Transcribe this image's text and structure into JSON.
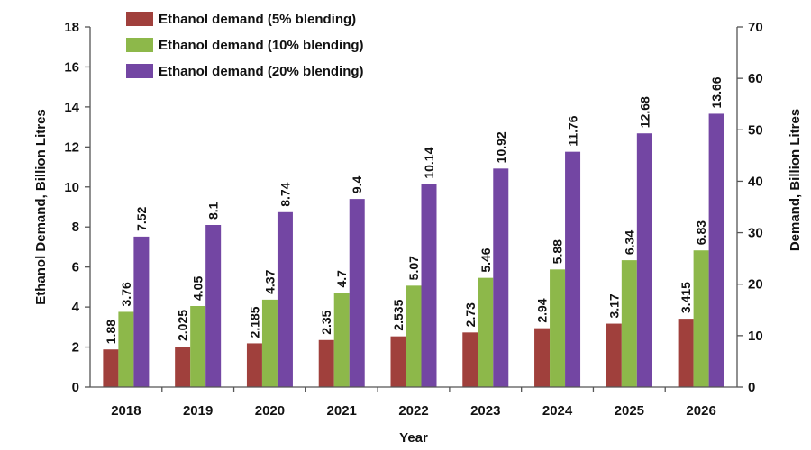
{
  "chart_data": {
    "type": "bar",
    "categories": [
      "2018",
      "2019",
      "2020",
      "2021",
      "2022",
      "2023",
      "2024",
      "2025",
      "2026"
    ],
    "series": [
      {
        "name": "Ethanol demand (5% blending)",
        "color": "#A0403C",
        "values": [
          1.88,
          2.025,
          2.185,
          2.35,
          2.535,
          2.73,
          2.94,
          3.17,
          3.415
        ],
        "labels": [
          "1.88",
          "2.025",
          "2.185",
          "2.35",
          "2.535",
          "2.73",
          "2.94",
          "3.17",
          "3.415"
        ]
      },
      {
        "name": "Ethanol demand (10% blending)",
        "color": "#8DB84A",
        "values": [
          3.76,
          4.05,
          4.37,
          4.7,
          5.07,
          5.46,
          5.88,
          6.34,
          6.83
        ],
        "labels": [
          "3.76",
          "4.05",
          "4.37",
          "4.7",
          "5.07",
          "5.46",
          "5.88",
          "6.34",
          "6.83"
        ]
      },
      {
        "name": "Ethanol demand (20% blending)",
        "color": "#7346A3",
        "values": [
          7.52,
          8.1,
          8.74,
          9.4,
          10.14,
          10.92,
          11.76,
          12.68,
          13.66
        ],
        "labels": [
          "7.52",
          "8.1",
          "8.74",
          "9.4",
          "10.14",
          "10.92",
          "11.76",
          "12.68",
          "13.66"
        ]
      }
    ],
    "xlabel": "Year",
    "ylabel": "Ethanol Demand,  Billion Litres",
    "ylabel_right": "Demand,  Billion Litres",
    "ylim": [
      0,
      18
    ],
    "yticks": [
      0,
      2,
      4,
      6,
      8,
      10,
      12,
      14,
      16,
      18
    ],
    "ylim_right": [
      0,
      70
    ],
    "yticks_right": [
      0,
      10,
      20,
      30,
      40,
      50,
      60,
      70
    ],
    "grid": false,
    "legend_position": "top-left"
  }
}
